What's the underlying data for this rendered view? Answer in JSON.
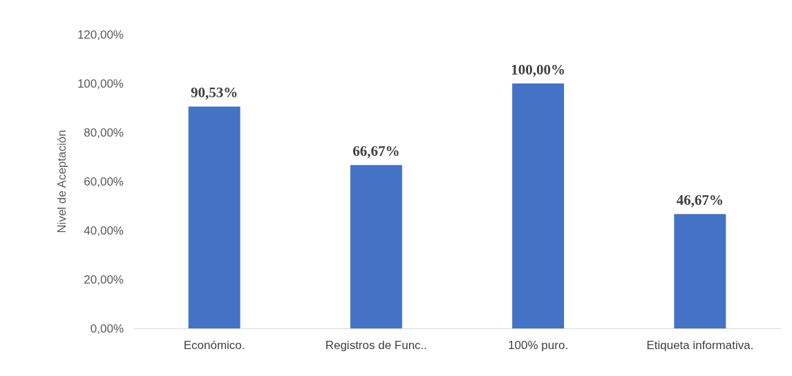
{
  "chart_data": {
    "type": "bar",
    "ylabel": "Nivel de Aceptación",
    "categories": [
      "Económico.",
      "Registros de Func..",
      "100% puro.",
      "Etiqueta informativa."
    ],
    "values": [
      90.53,
      66.67,
      100,
      46.67
    ],
    "value_labels": [
      "90,53%",
      "66,67%",
      "100,00%",
      "46,67%"
    ],
    "color": "#4472c4",
    "ylim": [
      0,
      120
    ],
    "yticks": [
      {
        "value": 0,
        "label": "0,00%"
      },
      {
        "value": 20,
        "label": "20,00%"
      },
      {
        "value": 40,
        "label": "40,00%"
      },
      {
        "value": 60,
        "label": "60,00%"
      },
      {
        "value": 80,
        "label": "80,00%"
      },
      {
        "value": 100,
        "label": "100,00%"
      },
      {
        "value": 120,
        "label": "120,00%"
      }
    ],
    "grid": false
  }
}
